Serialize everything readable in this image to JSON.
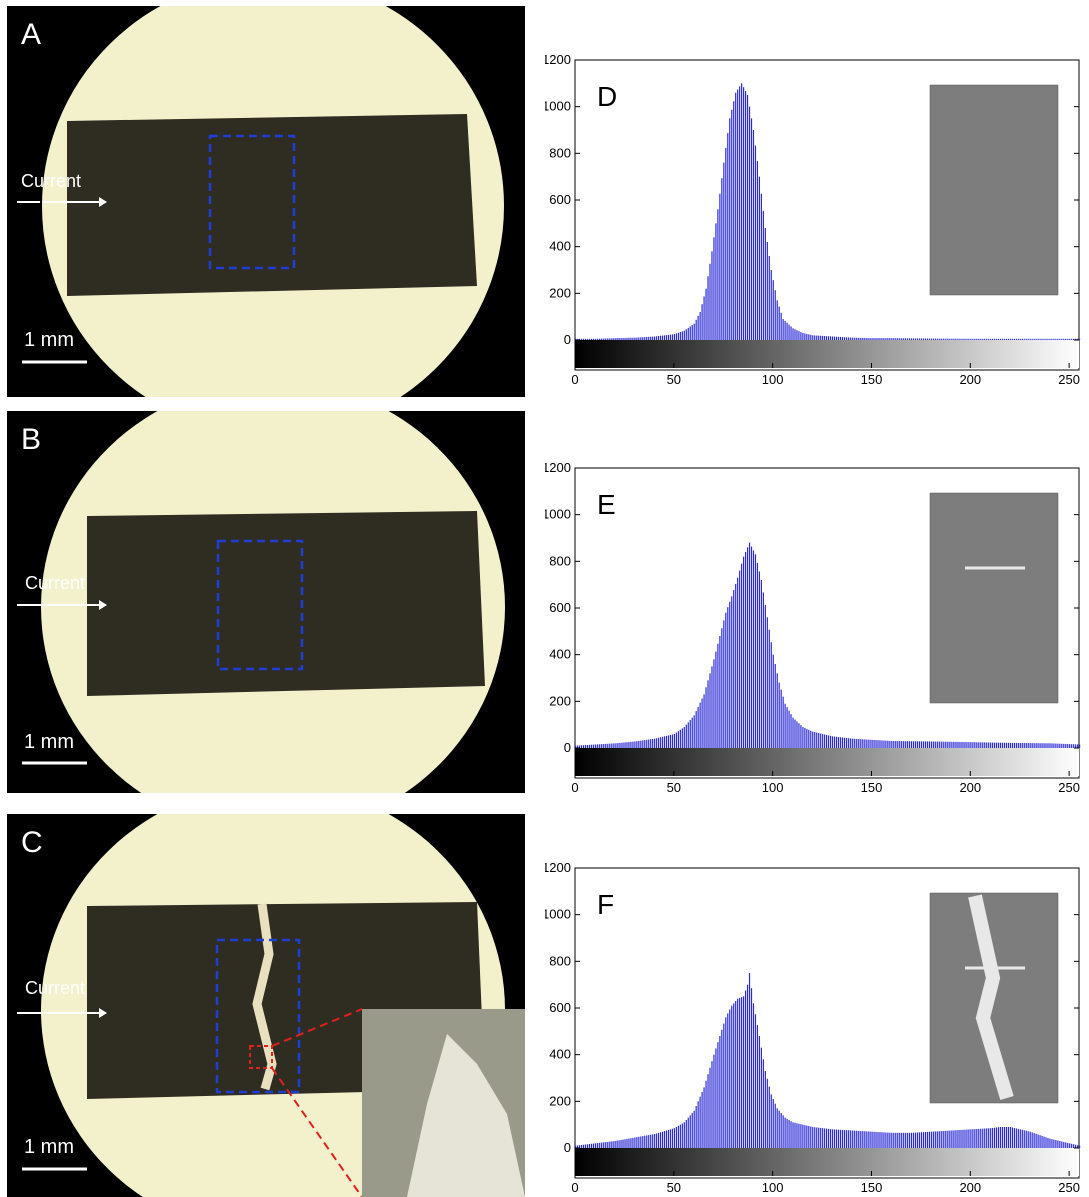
{
  "micrographs": [
    {
      "letter": "A",
      "current_label": "Current",
      "scale_label": "1 mm"
    },
    {
      "letter": "B",
      "current_label": "Current",
      "scale_label": "1 mm"
    },
    {
      "letter": "C",
      "current_label": "Current",
      "scale_label": "1 mm"
    }
  ],
  "colors": {
    "bars": "#2a2ad6",
    "box": "#1f3fd4",
    "zoom_box": "#e0201c",
    "stage": "#f3f0cc",
    "strip": "#2f2c22"
  },
  "chart_data": [
    {
      "type": "bar",
      "panel": "D",
      "xlim": [
        0,
        255
      ],
      "ylim": [
        0,
        1200
      ],
      "xticks": [
        0,
        50,
        100,
        150,
        200,
        250
      ],
      "yticks": [
        0,
        200,
        400,
        600,
        800,
        1000,
        1200
      ],
      "x": [
        0,
        10,
        20,
        30,
        40,
        50,
        55,
        60,
        63,
        66,
        69,
        72,
        75,
        78,
        81,
        84,
        87,
        90,
        93,
        96,
        99,
        102,
        105,
        110,
        115,
        120,
        130,
        140,
        150,
        160,
        180,
        200,
        220,
        240,
        255
      ],
      "y": [
        5,
        5,
        8,
        10,
        15,
        25,
        40,
        70,
        120,
        220,
        380,
        560,
        760,
        950,
        1060,
        1100,
        1050,
        900,
        700,
        480,
        300,
        170,
        90,
        50,
        30,
        20,
        15,
        10,
        8,
        8,
        6,
        5,
        5,
        5,
        5
      ],
      "inset": "grayscale crop"
    },
    {
      "type": "bar",
      "panel": "E",
      "xlim": [
        0,
        255
      ],
      "ylim": [
        0,
        1200
      ],
      "xticks": [
        0,
        50,
        100,
        150,
        200,
        250
      ],
      "yticks": [
        0,
        200,
        400,
        600,
        800,
        1000,
        1200
      ],
      "x": [
        0,
        10,
        20,
        30,
        40,
        50,
        55,
        60,
        65,
        70,
        73,
        76,
        79,
        82,
        85,
        88,
        91,
        94,
        97,
        100,
        103,
        106,
        110,
        115,
        120,
        130,
        140,
        150,
        160,
        180,
        200,
        220,
        240,
        255
      ],
      "y": [
        10,
        15,
        20,
        28,
        40,
        60,
        90,
        140,
        230,
        380,
        480,
        580,
        650,
        730,
        820,
        880,
        830,
        720,
        560,
        400,
        280,
        190,
        130,
        90,
        70,
        50,
        40,
        35,
        30,
        28,
        25,
        22,
        20,
        15
      ],
      "inset": "grayscale crop"
    },
    {
      "type": "bar",
      "panel": "F",
      "xlim": [
        0,
        255
      ],
      "ylim": [
        0,
        1200
      ],
      "xticks": [
        0,
        50,
        100,
        150,
        200,
        250
      ],
      "yticks": [
        0,
        200,
        400,
        600,
        800,
        1000,
        1200
      ],
      "x": [
        0,
        10,
        20,
        30,
        40,
        50,
        55,
        60,
        65,
        70,
        73,
        76,
        79,
        82,
        85,
        87,
        88,
        90,
        93,
        96,
        99,
        102,
        106,
        110,
        120,
        130,
        140,
        150,
        160,
        170,
        180,
        190,
        200,
        210,
        215,
        220,
        230,
        240,
        250,
        255
      ],
      "y": [
        10,
        20,
        30,
        45,
        60,
        85,
        110,
        160,
        260,
        400,
        480,
        560,
        610,
        640,
        650,
        700,
        750,
        620,
        480,
        330,
        230,
        170,
        130,
        110,
        90,
        80,
        75,
        70,
        65,
        65,
        70,
        75,
        80,
        85,
        90,
        90,
        70,
        40,
        20,
        10
      ],
      "inset": "grayscale crop"
    }
  ]
}
